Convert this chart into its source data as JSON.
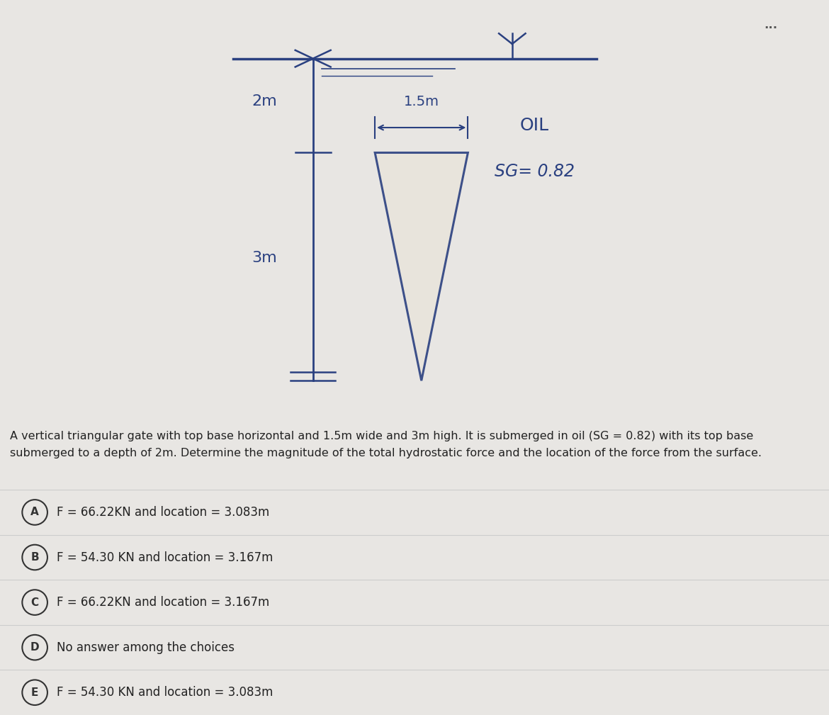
{
  "outer_bg": "#e8e6e3",
  "diagram_panel_bg": "#c8c4bc",
  "diagram_inner_bg": "#d6d1c8",
  "answer_bg": "#f0efed",
  "triangle_color": "#2a4080",
  "text_color_blue": "#2a4080",
  "text_color_dark": "#222222",
  "label_2m": "2m",
  "label_3m": "3m",
  "label_15m": "1.5m",
  "label_oil": "OIL",
  "label_sg": "SG= 0.82",
  "dots": "...",
  "description": "A vertical triangular gate with top base horizontal and 1.5m wide and 3m high. It is submerged in oil (SG = 0.82) with its top base\nsubmerged to a depth of 2m. Determine the magnitude of the total hydrostatic force and the location of the force from the surface.",
  "choices": [
    {
      "label": "A",
      "text": "F = 66.22KN and location = 3.083m"
    },
    {
      "label": "B",
      "text": "F = 54.30 KN and location = 3.167m"
    },
    {
      "label": "C",
      "text": "F = 66.22KN and location = 3.167m"
    },
    {
      "label": "D",
      "text": "No answer among the choices"
    },
    {
      "label": "E",
      "text": "F = 54.30 KN and location = 3.083m"
    }
  ]
}
